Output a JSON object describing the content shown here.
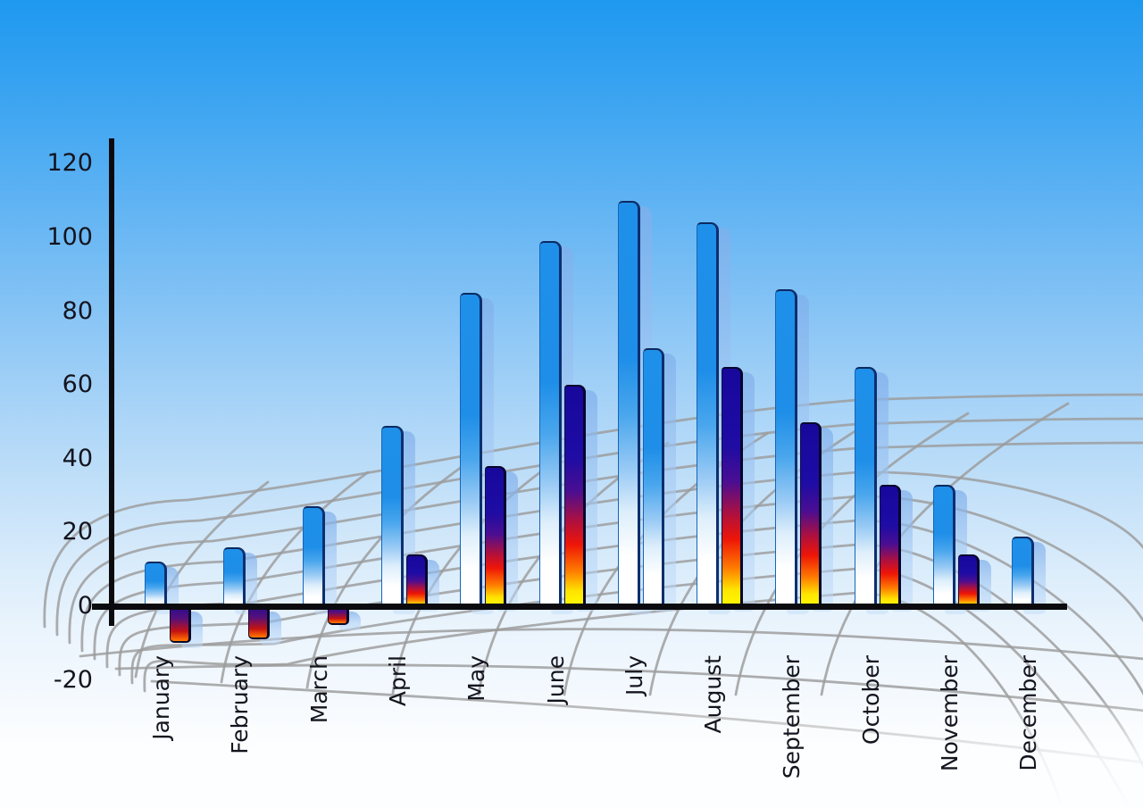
{
  "chart_data": {
    "type": "bar",
    "title": "",
    "xlabel": "",
    "ylabel": "",
    "categories": [
      "January",
      "February",
      "March",
      "April",
      "May",
      "June",
      "July",
      "August",
      "September",
      "October",
      "November",
      "December"
    ],
    "series": [
      {
        "name": "primary-blue-bars",
        "values": [
          12,
          16,
          27,
          49,
          85,
          99,
          110,
          104,
          86,
          65,
          33,
          19
        ]
      },
      {
        "name": "secondary-multicolor-bars",
        "values": [
          -10,
          -9,
          -5,
          14,
          38,
          60,
          70,
          65,
          50,
          33,
          14,
          null
        ]
      }
    ],
    "secondary_bar_style": [
      "multicolor",
      "multicolor",
      "multicolor",
      "multicolor",
      "multicolor",
      "multicolor",
      "blue",
      "multicolor",
      "multicolor",
      "multicolor",
      "multicolor",
      null
    ],
    "y_ticks": [
      "120",
      "100",
      "80",
      "60",
      "40",
      "20",
      "0",
      "-20"
    ],
    "y_tick_values": [
      120,
      100,
      80,
      60,
      40,
      20,
      0,
      -20
    ],
    "ylim": [
      -20,
      120
    ],
    "legend": "none",
    "grid_style": "curved gray perspective mesh behind bars",
    "notes": "each bar has a translucent light-blue echo copy offset to the lower right; December has no secondary bar; July secondary bar uses the blue style"
  },
  "colors": {
    "sky_top": "#1E99F0",
    "sky_bottom": "#FCFEFF",
    "bar_blue_top": "#1E8EE8",
    "bar_blue_bottom": "#FFFFFF",
    "multicolor_top": "#1A0CA0",
    "multicolor_mid": "#EE1507",
    "multicolor_bottom": "#FFFF00",
    "echo_bar": "#A9C9F1",
    "grid_line": "#9B9B9B",
    "axis": "#0B0B0F",
    "text": "#14141E"
  }
}
